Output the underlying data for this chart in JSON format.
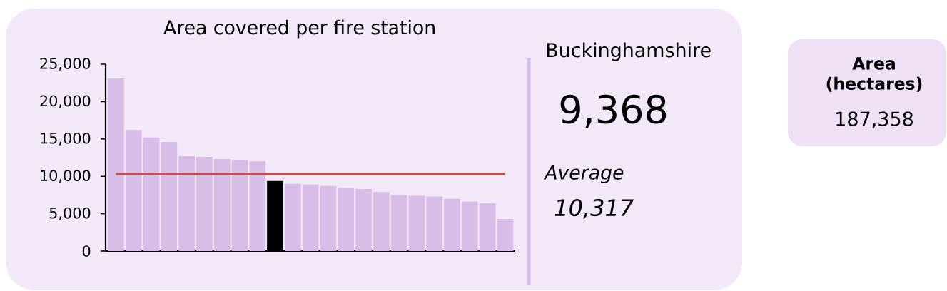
{
  "chart_data": [
    {
      "type": "bar",
      "title": "Area covered per fire station",
      "categories": [
        null,
        null,
        null,
        null,
        null,
        null,
        null,
        null,
        null,
        null,
        null,
        null,
        null,
        null,
        null,
        null,
        null,
        null,
        null,
        null,
        null,
        null,
        null
      ],
      "values": [
        23100,
        16200,
        15200,
        14600,
        12700,
        12600,
        12300,
        12200,
        12000,
        9368,
        9000,
        8900,
        8700,
        8500,
        8300,
        7900,
        7500,
        7400,
        7300,
        7000,
        6600,
        6400,
        4300
      ],
      "colors": [
        "#d9bde9",
        "#d9bde9",
        "#d9bde9",
        "#d9bde9",
        "#d9bde9",
        "#d9bde9",
        "#d9bde9",
        "#d9bde9",
        "#d9bde9",
        "#000000",
        "#d9bde9",
        "#d9bde9",
        "#d9bde9",
        "#d9bde9",
        "#d9bde9",
        "#d9bde9",
        "#d9bde9",
        "#d9bde9",
        "#d9bde9",
        "#d9bde9",
        "#d9bde9",
        "#d9bde9",
        "#d9bde9"
      ],
      "ylim": [
        0,
        25000
      ],
      "yticks": [
        0,
        {
          "value": 5000,
          "label": "5,000"
        },
        {
          "value": 10000,
          "label": "10,000"
        },
        {
          "value": 15000,
          "label": "15,000"
        },
        {
          "value": 20000,
          "label": "20,000"
        },
        {
          "value": 25000,
          "label": "25,000"
        }
      ],
      "tick_labels": "y",
      "ref_lines": [
        {
          "axis": "y",
          "value": 10317,
          "color": "#cc4c4c"
        }
      ],
      "annotations": [
        "Buckinghamshire",
        "9,368",
        "Average",
        "10,317"
      ]
    },
    {
      "type": "other",
      "title": "Area (hectares)",
      "annotations": [
        "187,358"
      ]
    }
  ]
}
